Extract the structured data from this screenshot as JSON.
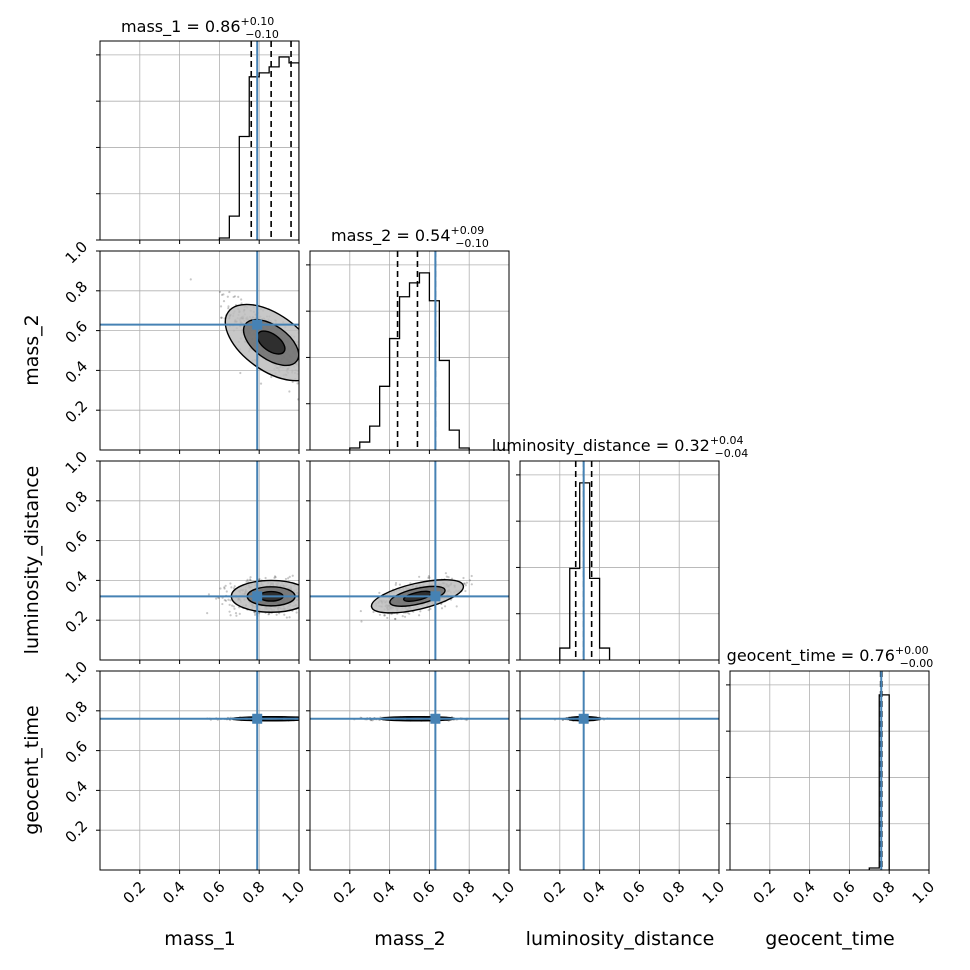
{
  "chart_data": {
    "type": "corner",
    "parameters": [
      "mass_1",
      "mass_2",
      "luminosity_distance",
      "geocent_time"
    ],
    "axis_range": [
      0.0,
      1.0
    ],
    "ticks": [
      "0.2",
      "0.4",
      "0.6",
      "0.8",
      "1.0"
    ],
    "ytick_labels_left_column": [
      "0.2",
      "0.4",
      "0.6",
      "0.8",
      "1.0"
    ],
    "grid": true,
    "truth_color": "#4682b4",
    "histogram_color": "#000000",
    "truths": [
      0.79,
      0.63,
      0.32,
      0.76
    ],
    "titles": [
      {
        "param": "mass_1",
        "median": "0.86",
        "plus": "+0.10",
        "minus": "−0.10"
      },
      {
        "param": "mass_2",
        "median": "0.54",
        "plus": "+0.09",
        "minus": "−0.10"
      },
      {
        "param": "luminosity_distance",
        "median": "0.32",
        "plus": "+0.04",
        "minus": "−0.04"
      },
      {
        "param": "geocent_time",
        "median": "0.76",
        "plus": "+0.00",
        "minus": "−0.00"
      }
    ],
    "quantiles": [
      [
        0.76,
        0.86,
        0.96
      ],
      [
        0.44,
        0.54,
        0.63
      ],
      [
        0.28,
        0.32,
        0.36
      ],
      [
        0.757,
        0.76,
        0.763
      ]
    ],
    "histograms": [
      {
        "edges": [
          0.6,
          0.65,
          0.7,
          0.75,
          0.8,
          0.85,
          0.9,
          0.95,
          1.0
        ],
        "counts": [
          0.01,
          0.12,
          0.52,
          0.82,
          0.84,
          0.87,
          0.92,
          0.89
        ]
      },
      {
        "edges": [
          0.2,
          0.25,
          0.3,
          0.35,
          0.4,
          0.45,
          0.5,
          0.55,
          0.6,
          0.65,
          0.7,
          0.75,
          0.8
        ],
        "counts": [
          0.01,
          0.04,
          0.12,
          0.32,
          0.56,
          0.77,
          0.84,
          0.89,
          0.75,
          0.45,
          0.1,
          0.01
        ]
      },
      {
        "edges": [
          0.2,
          0.25,
          0.3,
          0.35,
          0.4,
          0.45
        ],
        "counts": [
          0.06,
          0.46,
          0.89,
          0.41,
          0.06
        ]
      },
      {
        "edges": [
          0.7,
          0.75,
          0.8
        ],
        "counts": [
          0.01,
          0.88
        ]
      }
    ]
  },
  "labels": {
    "x": [
      "mass_1",
      "mass_2",
      "luminosity_distance",
      "geocent_time"
    ],
    "y": [
      "mass_2",
      "luminosity_distance",
      "geocent_time"
    ]
  }
}
